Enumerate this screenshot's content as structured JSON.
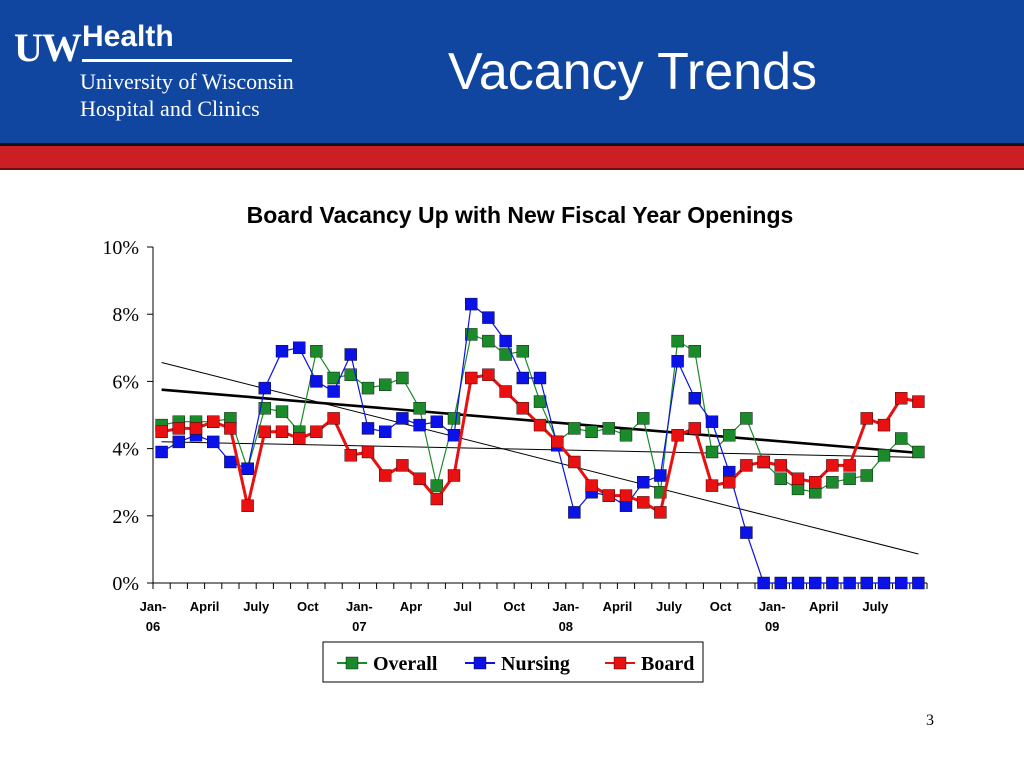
{
  "header": {
    "logo_uw": "UW",
    "logo_health": "Health",
    "logo_line1": "University of Wisconsin",
    "logo_line2": "Hospital and Clinics",
    "title": "Vacancy Trends"
  },
  "slide_number": "3",
  "colors": {
    "header_blue": "#1046a0",
    "accent_red": "#cc1e25",
    "overall": "#1a8a2a",
    "nursing": "#0a12e8",
    "board": "#e81010"
  },
  "chart_data": {
    "type": "line",
    "title": "Board Vacancy Up with New Fiscal Year Openings",
    "ylim": [
      0,
      10
    ],
    "y_ticks": [
      "0%",
      "2%",
      "4%",
      "6%",
      "8%",
      "10%"
    ],
    "x_labels": [
      {
        "index": 0,
        "line1": "Jan-",
        "line2": "06"
      },
      {
        "index": 3,
        "line1": "April",
        "line2": ""
      },
      {
        "index": 6,
        "line1": "July",
        "line2": ""
      },
      {
        "index": 9,
        "line1": "Oct",
        "line2": ""
      },
      {
        "index": 12,
        "line1": "Jan-",
        "line2": "07"
      },
      {
        "index": 15,
        "line1": "Apr",
        "line2": ""
      },
      {
        "index": 18,
        "line1": "Jul",
        "line2": ""
      },
      {
        "index": 21,
        "line1": "Oct",
        "line2": ""
      },
      {
        "index": 24,
        "line1": "Jan-",
        "line2": "08"
      },
      {
        "index": 27,
        "line1": "April",
        "line2": ""
      },
      {
        "index": 30,
        "line1": "July",
        "line2": ""
      },
      {
        "index": 33,
        "line1": "Oct",
        "line2": ""
      },
      {
        "index": 36,
        "line1": "Jan-",
        "line2": "09"
      },
      {
        "index": 39,
        "line1": "April",
        "line2": ""
      },
      {
        "index": 42,
        "line1": "July",
        "line2": ""
      }
    ],
    "n_points": 45,
    "legend": {
      "position": "bottom"
    },
    "series": [
      {
        "name": "Overall",
        "color": "#1a8a2a",
        "values": [
          4.7,
          4.8,
          4.8,
          4.8,
          4.9,
          3.4,
          5.2,
          5.1,
          4.5,
          6.9,
          6.1,
          6.2,
          5.8,
          5.9,
          6.1,
          5.2,
          2.9,
          4.9,
          7.4,
          7.2,
          6.8,
          6.9,
          5.4,
          4.2,
          4.6,
          4.5,
          4.6,
          4.4,
          4.9,
          2.7,
          7.2,
          6.9,
          3.9,
          4.4,
          4.9,
          3.6,
          3.1,
          2.8,
          2.7,
          3.0,
          3.1,
          3.2,
          3.8,
          4.3,
          3.9
        ]
      },
      {
        "name": "Nursing",
        "color": "#0a12e8",
        "values": [
          3.9,
          4.2,
          4.4,
          4.2,
          3.6,
          3.4,
          5.8,
          6.9,
          7.0,
          6.0,
          5.7,
          6.8,
          4.6,
          4.5,
          4.9,
          4.7,
          4.8,
          4.4,
          8.3,
          7.9,
          7.2,
          6.1,
          6.1,
          4.1,
          2.1,
          2.7,
          2.6,
          2.3,
          3.0,
          3.2,
          6.6,
          5.5,
          4.8,
          3.3,
          1.5,
          0,
          0,
          0,
          0,
          0,
          0,
          0,
          0,
          0,
          0
        ]
      },
      {
        "name": "Board",
        "color": "#e81010",
        "values": [
          4.5,
          4.6,
          4.6,
          4.8,
          4.6,
          2.3,
          4.5,
          4.5,
          4.3,
          4.5,
          4.9,
          3.8,
          3.9,
          3.2,
          3.5,
          3.1,
          2.5,
          3.2,
          6.1,
          6.2,
          5.7,
          5.2,
          4.7,
          4.2,
          3.6,
          2.9,
          2.6,
          2.6,
          2.4,
          2.1,
          4.4,
          4.6,
          2.9,
          3.0,
          3.5,
          3.6,
          3.5,
          3.1,
          3.0,
          3.5,
          3.5,
          4.9,
          4.7,
          5.5,
          5.4
        ]
      }
    ]
  }
}
